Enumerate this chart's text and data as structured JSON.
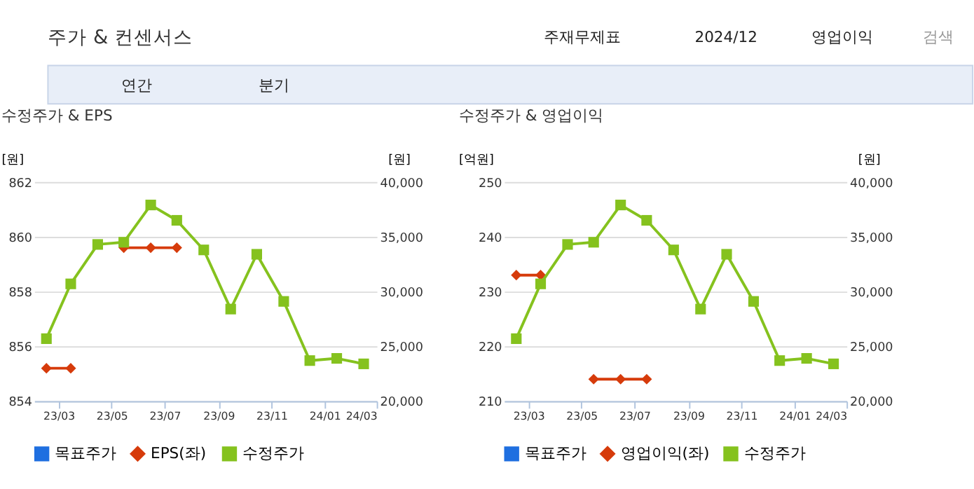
{
  "chart_data": [
    {
      "type": "line",
      "title": "수정주가 & EPS",
      "ylabel": "[원]",
      "y2label": "[원]",
      "annotations": [
        "주가 & 컨센서스",
        "주재무제표",
        "2024/12",
        "영업이익",
        "검색",
        "연간",
        "분기"
      ],
      "x": [
        "2023-02-15",
        "2023-03-15",
        "2023-04-15",
        "2023-05-15",
        "2023-06-15",
        "2023-07-15",
        "2023-08-15",
        "2023-09-15",
        "2023-10-15",
        "2023-11-15",
        "2023-12-15",
        "2024-01-15",
        "2024-02-15"
      ],
      "xlim": [
        "2023-02-01",
        "2024-03-01"
      ],
      "xticks": [
        {
          "value": "2023-03-01",
          "label": "23/03"
        },
        {
          "value": "2023-05-01",
          "label": "23/05"
        },
        {
          "value": "2023-07-01",
          "label": "23/07"
        },
        {
          "value": "2023-09-01",
          "label": "23/09"
        },
        {
          "value": "2023-11-01",
          "label": "23/11"
        },
        {
          "value": "2024-01-01",
          "label": "24/01"
        },
        {
          "value": "2024-03-01",
          "label": "24/03"
        }
      ],
      "ylim": [
        854,
        862
      ],
      "yticks": [
        854,
        856,
        858,
        860,
        862
      ],
      "y2lim": [
        20000,
        40000
      ],
      "y2ticks": [
        {
          "value": 20000,
          "label": "20,000"
        },
        {
          "value": 25000,
          "label": "25,000"
        },
        {
          "value": 30000,
          "label": "30,000"
        },
        {
          "value": 35000,
          "label": "35,000"
        },
        {
          "value": 40000,
          "label": "40,000"
        }
      ],
      "grid": "y",
      "legend": "bottom",
      "series": [
        {
          "name": "목표주가",
          "color": "#1f6fe0",
          "marker": "square",
          "values": [
            null,
            null,
            null,
            null,
            null,
            null,
            null,
            null,
            null,
            null,
            null,
            null,
            null
          ]
        },
        {
          "name": "EPS(좌)",
          "color": "#d63b0b",
          "marker": "diamond",
          "values": [
            855.2,
            855.2,
            null,
            859.6,
            859.6,
            859.6,
            null,
            null,
            null,
            null,
            null,
            null,
            null
          ]
        },
        {
          "name": "수정주가",
          "color": "#85c21e",
          "marker": "square",
          "axis": "y2",
          "values": [
            25700,
            30700,
            34300,
            34500,
            37900,
            36500,
            33800,
            28400,
            33400,
            29100,
            23700,
            23900,
            23400
          ]
        }
      ]
    },
    {
      "type": "line",
      "title": "수정주가 & 영업이익",
      "ylabel": "[억원]",
      "y2label": "[원]",
      "x": [
        "2023-02-15",
        "2023-03-15",
        "2023-04-15",
        "2023-05-15",
        "2023-06-15",
        "2023-07-15",
        "2023-08-15",
        "2023-09-15",
        "2023-10-15",
        "2023-11-15",
        "2023-12-15",
        "2024-01-15",
        "2024-02-15"
      ],
      "xlim": [
        "2023-02-01",
        "2024-03-01"
      ],
      "xticks": [
        {
          "value": "2023-03-01",
          "label": "23/03"
        },
        {
          "value": "2023-05-01",
          "label": "23/05"
        },
        {
          "value": "2023-07-01",
          "label": "23/07"
        },
        {
          "value": "2023-09-01",
          "label": "23/09"
        },
        {
          "value": "2023-11-01",
          "label": "23/11"
        },
        {
          "value": "2024-01-01",
          "label": "24/01"
        },
        {
          "value": "2024-03-01",
          "label": "24/03"
        }
      ],
      "ylim": [
        210,
        250
      ],
      "yticks": [
        210,
        220,
        230,
        240,
        250
      ],
      "y2lim": [
        20000,
        40000
      ],
      "y2ticks": [
        {
          "value": 20000,
          "label": "20,000"
        },
        {
          "value": 25000,
          "label": "25,000"
        },
        {
          "value": 30000,
          "label": "30,000"
        },
        {
          "value": 35000,
          "label": "35,000"
        },
        {
          "value": 40000,
          "label": "40,000"
        }
      ],
      "grid": "y",
      "legend": "bottom",
      "series": [
        {
          "name": "목표주가",
          "color": "#1f6fe0",
          "marker": "square",
          "values": [
            null,
            null,
            null,
            null,
            null,
            null,
            null,
            null,
            null,
            null,
            null,
            null,
            null
          ]
        },
        {
          "name": "영업이익(좌)",
          "color": "#d63b0b",
          "marker": "diamond",
          "values": [
            233,
            233,
            null,
            214,
            214,
            214,
            null,
            null,
            null,
            null,
            null,
            null,
            null
          ]
        },
        {
          "name": "수정주가",
          "color": "#85c21e",
          "marker": "square",
          "axis": "y2",
          "values": [
            25700,
            30700,
            34300,
            34500,
            37900,
            36500,
            33800,
            28400,
            33400,
            29100,
            23700,
            23900,
            23400
          ]
        }
      ]
    }
  ]
}
